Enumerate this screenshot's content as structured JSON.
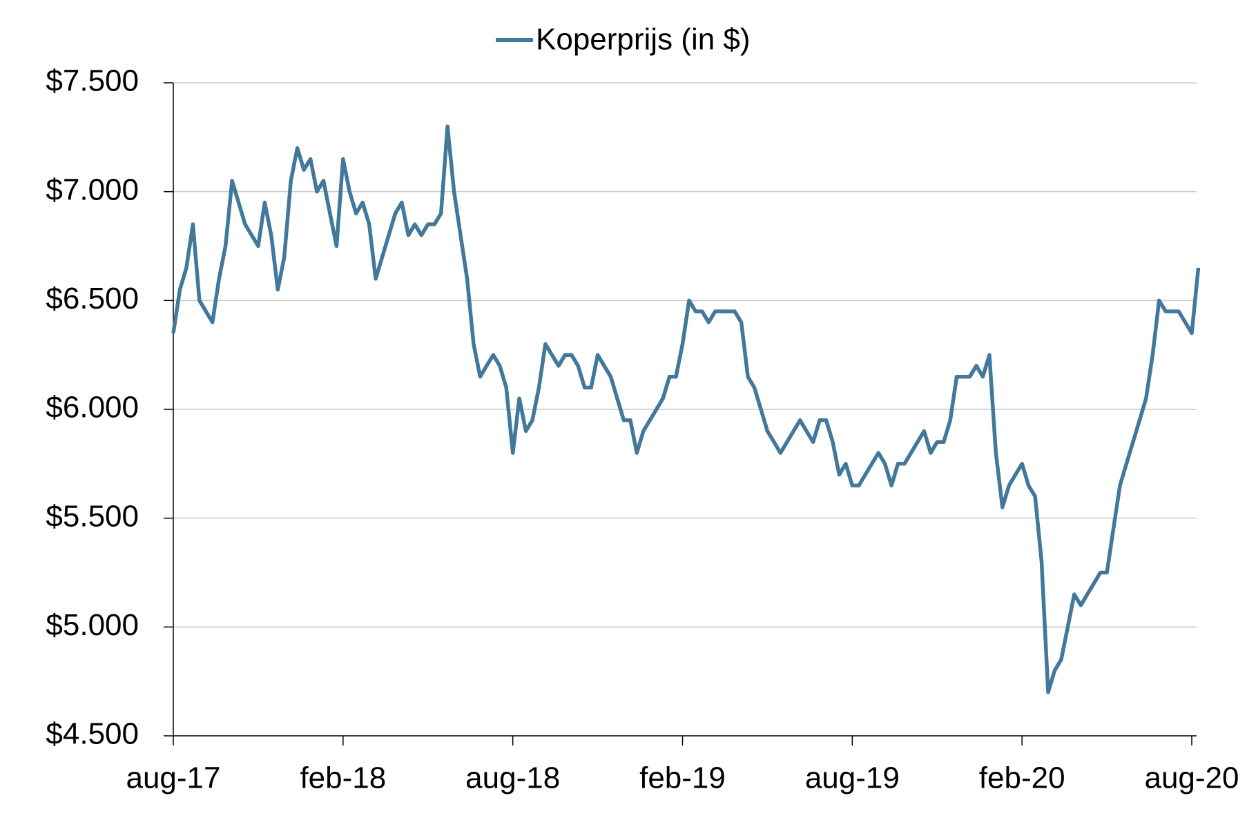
{
  "chart_data": {
    "type": "line",
    "categories": [
      "aug-17",
      null,
      null,
      null,
      null,
      null,
      null,
      null,
      null,
      null,
      null,
      null,
      null,
      null,
      null,
      null,
      null,
      null,
      null,
      null,
      null,
      null,
      null,
      null,
      null,
      null,
      "feb-18",
      null,
      null,
      null,
      null,
      null,
      null,
      null,
      null,
      null,
      null,
      null,
      null,
      null,
      null,
      null,
      null,
      null,
      null,
      null,
      null,
      null,
      null,
      null,
      null,
      null,
      "aug-18",
      null,
      null,
      null,
      null,
      null,
      null,
      null,
      null,
      null,
      null,
      null,
      null,
      null,
      null,
      null,
      null,
      null,
      null,
      null,
      null,
      null,
      null,
      null,
      null,
      null,
      "feb-19",
      null,
      null,
      null,
      null,
      null,
      null,
      null,
      null,
      null,
      null,
      null,
      null,
      null,
      null,
      null,
      null,
      null,
      null,
      null,
      null,
      null,
      null,
      null,
      null,
      null,
      "aug-19",
      null,
      null,
      null,
      null,
      null,
      null,
      null,
      null,
      null,
      null,
      null,
      null,
      null,
      null,
      null,
      null,
      null,
      null,
      null,
      null,
      null,
      null,
      null,
      null,
      null,
      "feb-20",
      null,
      null,
      null,
      null,
      null,
      null,
      null,
      null,
      null,
      null,
      null,
      null,
      null,
      null,
      null,
      null,
      null,
      null,
      null,
      null,
      null,
      null,
      null,
      null,
      null,
      "aug-20",
      null
    ],
    "series": [
      {
        "name": "Koperprijs (in $)",
        "color": "#41789b",
        "values": [
          6350,
          6550,
          6650,
          6850,
          6500,
          6450,
          6400,
          6600,
          6750,
          7050,
          6950,
          6850,
          6800,
          6750,
          6950,
          6800,
          6550,
          6700,
          7050,
          7200,
          7100,
          7150,
          7000,
          7050,
          6900,
          6750,
          7150,
          7000,
          6900,
          6950,
          6850,
          6600,
          6700,
          6800,
          6900,
          6950,
          6800,
          6850,
          6800,
          6850,
          6850,
          6900,
          7300,
          7000,
          6800,
          6600,
          6300,
          6150,
          6200,
          6250,
          6200,
          6100,
          5800,
          6050,
          5900,
          5950,
          6100,
          6300,
          6250,
          6200,
          6250,
          6250,
          6200,
          6100,
          6100,
          6250,
          6200,
          6150,
          6050,
          5950,
          5950,
          5800,
          5900,
          5950,
          6000,
          6050,
          6150,
          6150,
          6300,
          6500,
          6450,
          6450,
          6400,
          6450,
          6450,
          6450,
          6450,
          6400,
          6150,
          6100,
          6000,
          5900,
          5850,
          5800,
          5850,
          5900,
          5950,
          5900,
          5850,
          5950,
          5950,
          5850,
          5700,
          5750,
          5650,
          5650,
          5700,
          5750,
          5800,
          5750,
          5650,
          5750,
          5750,
          5800,
          5850,
          5900,
          5800,
          5850,
          5850,
          5950,
          6150,
          6150,
          6150,
          6200,
          6150,
          6250,
          5800,
          5550,
          5650,
          5700,
          5750,
          5650,
          5600,
          5300,
          4700,
          4800,
          4850,
          5000,
          5150,
          5100,
          5150,
          5200,
          5250,
          5250,
          5450,
          5650,
          5750,
          5850,
          5950,
          6050,
          6250,
          6500,
          6450,
          6450,
          6450,
          6400,
          6350,
          6650
        ]
      }
    ],
    "ylim": [
      4500,
      7500
    ],
    "yticks": [
      {
        "value": 4500,
        "label": "$4.500"
      },
      {
        "value": 5000,
        "label": "$5.000"
      },
      {
        "value": 5500,
        "label": "$5.500"
      },
      {
        "value": 6000,
        "label": "$6.000"
      },
      {
        "value": 6500,
        "label": "$6.500"
      },
      {
        "value": 7000,
        "label": "$7.000"
      },
      {
        "value": 7500,
        "label": "$7.500"
      }
    ],
    "grid": true,
    "legend": "top"
  }
}
